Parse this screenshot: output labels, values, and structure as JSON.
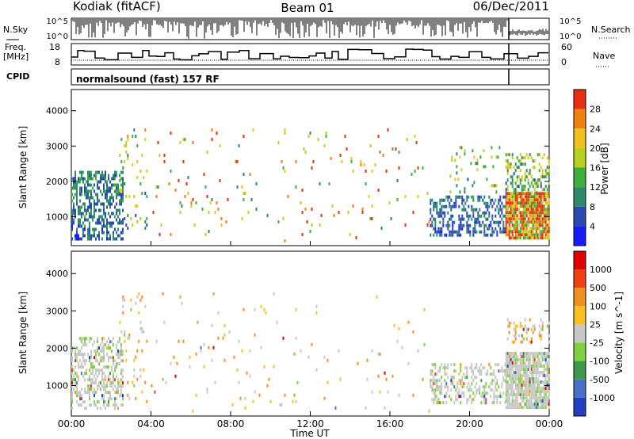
{
  "header": {
    "station": "Kodiak (fitACF)",
    "beam": "Beam 01",
    "date": "06/Dec/2011"
  },
  "strips": {
    "nsky_label": "N.Sky",
    "nsearch_label": "N.Search",
    "freq_label": "Freq.",
    "freq_unit": "[MHz]",
    "nave_label": "Nave",
    "cpid_label": "CPID",
    "cpid_text": "normalsound (fast) 157 RF",
    "noise_left_ticks": [
      "10^5",
      "10^0"
    ],
    "noise_right_ticks": [
      "10^5",
      "10^0"
    ],
    "freq_ticks": [
      "18",
      "8"
    ],
    "nave_ticks": [
      "60",
      "0"
    ]
  },
  "chart_data": [
    {
      "type": "heatmap",
      "panel": "power",
      "xlabel": "",
      "ylabel": "Slant Range [km]",
      "x_range_hours": [
        0,
        24
      ],
      "ylim": [
        180,
        4600
      ],
      "y_ticks": [
        1000,
        2000,
        3000,
        4000
      ],
      "colorbar": {
        "label": "Power [dB]",
        "ticks": [
          "4",
          "8",
          "12",
          "16",
          "20",
          "24",
          "28"
        ],
        "colors": [
          "#1a1aff",
          "#2a4ab0",
          "#2e8a6a",
          "#3cb03c",
          "#b8d020",
          "#f0c020",
          "#f08010",
          "#e83010"
        ]
      },
      "clusters": [
        {
          "t0": 0.0,
          "t1": 2.6,
          "r0": 400,
          "r1": 2300,
          "density": 0.55,
          "level_hi": 0.3
        },
        {
          "t0": 2.4,
          "t1": 3.8,
          "r0": 600,
          "r1": 3500,
          "density": 0.1,
          "level_hi": 0.6
        },
        {
          "t0": 4.0,
          "t1": 18.0,
          "r0": 300,
          "r1": 3500,
          "density": 0.025,
          "level_hi": 0.8
        },
        {
          "t0": 18.0,
          "t1": 21.8,
          "r0": 500,
          "r1": 1600,
          "density": 0.45,
          "level_hi": 0.25
        },
        {
          "t0": 19.0,
          "t1": 21.5,
          "r0": 1700,
          "r1": 3000,
          "density": 0.08,
          "level_hi": 0.6
        },
        {
          "t0": 21.8,
          "t1": 24.0,
          "r0": 400,
          "r1": 1700,
          "density": 0.9,
          "level_hi": 1.0
        },
        {
          "t0": 21.8,
          "t1": 24.0,
          "r0": 1700,
          "r1": 2800,
          "density": 0.35,
          "level_hi": 0.55
        }
      ]
    },
    {
      "type": "heatmap",
      "panel": "velocity",
      "xlabel": "Time UT",
      "ylabel": "Slant Range [km]",
      "x_range_hours": [
        0,
        24
      ],
      "x_ticks": [
        "00:00",
        "04:00",
        "08:00",
        "12:00",
        "16:00",
        "20:00",
        "00:00"
      ],
      "ylim": [
        180,
        4600
      ],
      "y_ticks": [
        1000,
        2000,
        3000,
        4000
      ],
      "colorbar": {
        "label": "Velocity [m s^-1]",
        "ticks": [
          "1000",
          "500",
          "100",
          "25",
          "-25",
          "-100",
          "-500",
          "-1000"
        ],
        "colors": [
          "#2040c0",
          "#4a70c8",
          "#3e9a4a",
          "#80d040",
          "#c8c8c8",
          "#f8c020",
          "#f09020",
          "#f04010",
          "#e00000"
        ]
      },
      "clusters": [
        {
          "t0": 0.0,
          "t1": 2.6,
          "r0": 400,
          "r1": 2300,
          "density": 0.45,
          "level_hi": 0.3
        },
        {
          "t0": 2.4,
          "t1": 3.8,
          "r0": 600,
          "r1": 3500,
          "density": 0.08,
          "level_hi": 0.6
        },
        {
          "t0": 4.0,
          "t1": 18.0,
          "r0": 300,
          "r1": 3500,
          "density": 0.02,
          "level_hi": 0.8
        },
        {
          "t0": 18.0,
          "t1": 21.8,
          "r0": 500,
          "r1": 1600,
          "density": 0.4,
          "level_hi": 0.3
        },
        {
          "t0": 21.8,
          "t1": 24.0,
          "r0": 400,
          "r1": 1900,
          "density": 0.85,
          "level_hi": 0.35
        },
        {
          "t0": 21.8,
          "t1": 24.0,
          "r0": 2200,
          "r1": 2800,
          "density": 0.3,
          "level_hi": 0.7
        }
      ]
    }
  ]
}
